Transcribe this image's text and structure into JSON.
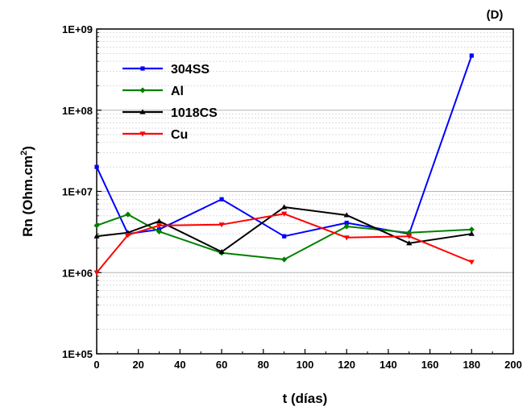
{
  "chart_data": {
    "type": "line",
    "panel_label": "(D)",
    "xlabel": "t (días)",
    "ylabel": "Rn (Ohm.cm",
    "ylabel_sup": "2",
    "ylabel_close": ")",
    "xlim": [
      0,
      200
    ],
    "ylim": [
      100000,
      1000000000
    ],
    "yscale": "log",
    "x_ticks": [
      0,
      20,
      40,
      60,
      80,
      100,
      120,
      140,
      160,
      180,
      200
    ],
    "x_tick_labels": [
      "0",
      "20",
      "40",
      "60",
      "80",
      "100",
      "120",
      "140",
      "160",
      "180",
      "200"
    ],
    "y_ticks": [
      100000,
      1000000,
      10000000,
      100000000,
      1000000000
    ],
    "y_tick_labels": [
      "1E+05",
      "1E+06",
      "1E+07",
      "1E+08",
      "1E+09"
    ],
    "grid": true,
    "legend_position": "top-left",
    "series": [
      {
        "name": "304SS",
        "color": "#0000ff",
        "marker": "square",
        "x": [
          0,
          15,
          30,
          60,
          90,
          120,
          150,
          180
        ],
        "values": [
          20000000,
          3000000,
          3400000,
          8000000,
          2800000,
          4100000,
          3000000,
          470000000
        ]
      },
      {
        "name": "Al",
        "color": "#008000",
        "marker": "diamond",
        "x": [
          0,
          15,
          30,
          60,
          90,
          120,
          150,
          180
        ],
        "values": [
          3800000,
          5200000,
          3200000,
          1750000,
          1450000,
          3700000,
          3100000,
          3400000
        ]
      },
      {
        "name": "1018CS",
        "color": "#000000",
        "marker": "triangle-up",
        "x": [
          0,
          15,
          30,
          60,
          90,
          120,
          150,
          180
        ],
        "values": [
          2800000,
          3100000,
          4300000,
          1800000,
          6400000,
          5100000,
          2300000,
          3000000
        ]
      },
      {
        "name": "Cu",
        "color": "#ff0000",
        "marker": "triangle-down",
        "x": [
          0,
          15,
          30,
          60,
          90,
          120,
          150,
          180
        ],
        "values": [
          1000000,
          2900000,
          3800000,
          3900000,
          5300000,
          2700000,
          2800000,
          1350000
        ]
      }
    ]
  }
}
